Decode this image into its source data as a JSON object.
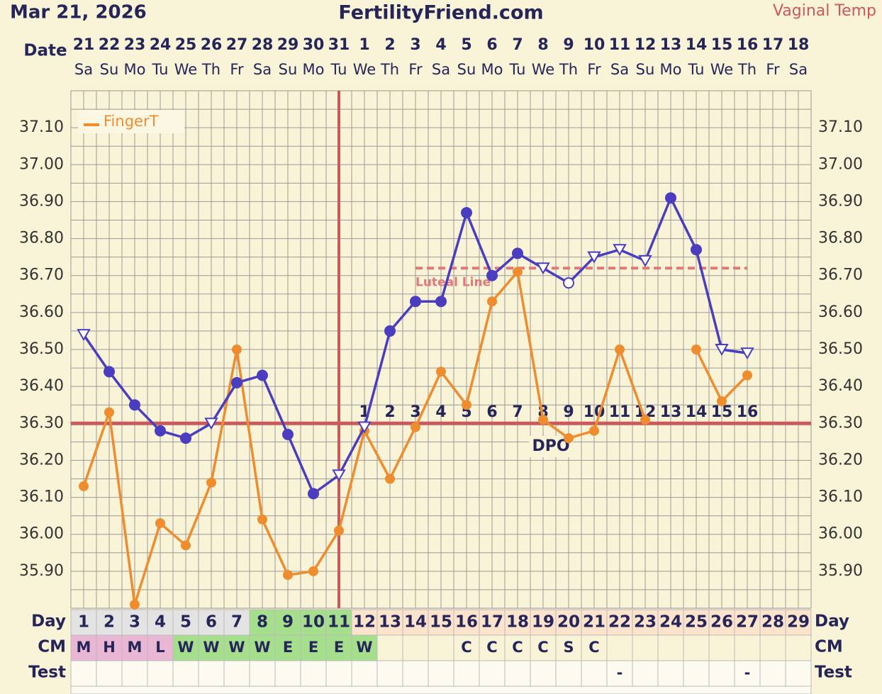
{
  "header": {
    "date": "Mar 21, 2026",
    "site": "FertilityFriend.com"
  },
  "chart_data": {
    "type": "line",
    "date_label": "Date",
    "categories": [
      "21",
      "22",
      "23",
      "24",
      "25",
      "26",
      "27",
      "28",
      "29",
      "30",
      "31",
      "1",
      "2",
      "3",
      "4",
      "5",
      "6",
      "7",
      "8",
      "9",
      "10",
      "11",
      "12",
      "13",
      "14",
      "15",
      "16",
      "17",
      "18"
    ],
    "weekdays": [
      "Sa",
      "Su",
      "Mo",
      "Tu",
      "We",
      "Th",
      "Fr",
      "Sa",
      "Su",
      "Mo",
      "Tu",
      "We",
      "Th",
      "Fr",
      "Sa",
      "Su",
      "Mo",
      "Tu",
      "We",
      "Th",
      "Fr",
      "Sa",
      "Su",
      "Mo",
      "Tu",
      "We",
      "Th",
      "Fr",
      "Sa"
    ],
    "ylim": [
      35.8,
      37.2
    ],
    "yticks": [
      {
        "value": 35.9,
        "label": "35.90"
      },
      {
        "value": 36.0,
        "label": "36.00"
      },
      {
        "value": 36.1,
        "label": "36.10"
      },
      {
        "value": 36.2,
        "label": "36.20"
      },
      {
        "value": 36.3,
        "label": "36.30"
      },
      {
        "value": 36.4,
        "label": "36.40"
      },
      {
        "value": 36.5,
        "label": "36.50"
      },
      {
        "value": 36.6,
        "label": "36.60"
      },
      {
        "value": 36.7,
        "label": "36.70"
      },
      {
        "value": 36.8,
        "label": "36.80"
      },
      {
        "value": 36.9,
        "label": "36.90"
      },
      {
        "value": 37.0,
        "label": "37.00"
      },
      {
        "value": 37.1,
        "label": "37.10"
      }
    ],
    "minor_yticks": [
      35.85,
      35.95,
      36.05,
      36.15,
      36.25,
      36.35,
      36.45,
      36.55,
      36.65,
      36.75,
      36.85,
      36.95,
      37.05,
      37.15
    ],
    "grid": true,
    "series": [
      {
        "name": "Vaginal Temp",
        "color": "#4a3dbf",
        "values": [
          36.54,
          36.44,
          36.35,
          36.28,
          36.26,
          36.3,
          36.41,
          36.43,
          36.27,
          36.11,
          36.16,
          36.29,
          36.55,
          36.63,
          36.63,
          36.87,
          36.7,
          36.76,
          36.72,
          36.68,
          36.75,
          36.77,
          36.74,
          36.91,
          36.77,
          36.5,
          36.49,
          null,
          null
        ],
        "markers": [
          "triangle",
          "circle",
          "circle",
          "circle",
          "circle",
          "triangle",
          "circle",
          "circle",
          "circle",
          "circle",
          "triangle",
          "triangle",
          "circle",
          "circle",
          "circle",
          "circle",
          "circle",
          "circle",
          "triangle",
          "open-circle",
          "triangle",
          "triangle",
          "triangle",
          "circle",
          "circle",
          "triangle",
          "triangle",
          null,
          null
        ]
      },
      {
        "name": "FingerT",
        "color": "#ee8c2e",
        "values": [
          36.13,
          36.33,
          35.81,
          36.03,
          35.97,
          36.14,
          36.5,
          36.04,
          35.89,
          35.9,
          36.01,
          36.28,
          36.15,
          36.29,
          36.44,
          36.35,
          36.63,
          36.71,
          36.31,
          36.26,
          36.28,
          36.5,
          36.31,
          null,
          36.5,
          36.36,
          36.43,
          null,
          null
        ]
      }
    ],
    "coverline": 36.3,
    "coverline_color": "#c9595a",
    "ovulation_date": "31",
    "luteal_line": {
      "label": "Luteal Line",
      "value": 36.72,
      "from": "3",
      "to": "16",
      "color": "#e07a7a"
    },
    "dpo_label": "DPO",
    "dpo": [
      null,
      null,
      null,
      null,
      null,
      null,
      null,
      null,
      null,
      null,
      null,
      1,
      2,
      3,
      4,
      5,
      6,
      7,
      8,
      9,
      10,
      11,
      12,
      13,
      14,
      15,
      16,
      null,
      null
    ],
    "day_label": "Day",
    "days": [
      1,
      2,
      3,
      4,
      5,
      6,
      7,
      8,
      9,
      10,
      11,
      12,
      13,
      14,
      15,
      16,
      17,
      18,
      19,
      20,
      21,
      22,
      23,
      24,
      25,
      26,
      27,
      28,
      29
    ],
    "day_colors": [
      "#e3e3e3",
      "#e3e3e3",
      "#e3e3e3",
      "#e3e3e3",
      "#e3e3e3",
      "#e3e3e3",
      "#e3e3e3",
      "#a6df8c",
      "#a6df8c",
      "#a6df8c",
      "#a6df8c",
      "#fbe3cc",
      "#fbe3cc",
      "#fbe3cc",
      "#fbe3cc",
      "#fbe3cc",
      "#fbe3cc",
      "#fbe3cc",
      "#fbe3cc",
      "#fbe3cc",
      "#fbe3cc",
      "#fbe3cc",
      "#fbe3cc",
      "#fbe3cc",
      "#fbe3cc",
      "#fbe3cc",
      "#fbe3cc",
      "#fbe3cc",
      "#fbe3cc"
    ],
    "cm_label": "CM",
    "cm": [
      "M",
      "H",
      "M",
      "L",
      "W",
      "W",
      "W",
      "W",
      "E",
      "E",
      "E",
      "W",
      null,
      null,
      null,
      "C",
      "C",
      "C",
      "C",
      "S",
      "C",
      null,
      null,
      null,
      null,
      null,
      null,
      null,
      null
    ],
    "test_label": "Test",
    "test": [
      null,
      null,
      null,
      null,
      null,
      null,
      null,
      null,
      null,
      null,
      null,
      null,
      null,
      null,
      null,
      null,
      null,
      null,
      null,
      null,
      null,
      "-",
      null,
      null,
      null,
      null,
      "-",
      null,
      null
    ]
  }
}
